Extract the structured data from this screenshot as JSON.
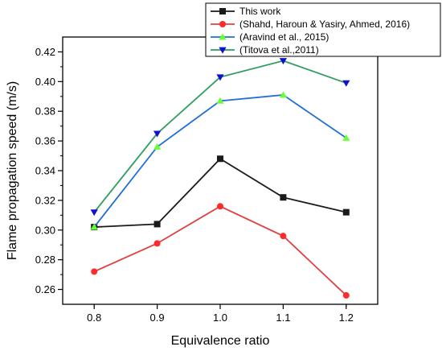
{
  "chart_data": {
    "type": "line",
    "xlabel": "Equivalence ratio",
    "ylabel": "Flame propagation speed (m/s)",
    "xlim": [
      0.75,
      1.25
    ],
    "ylim": [
      0.25,
      0.43
    ],
    "x": [
      0.8,
      0.9,
      1.0,
      1.1,
      1.2
    ],
    "x_ticks": [
      "0.8",
      "0.9",
      "1.0",
      "1.1",
      "1.2"
    ],
    "y_ticks": [
      "0.26",
      "0.28",
      "0.30",
      "0.32",
      "0.34",
      "0.36",
      "0.38",
      "0.40",
      "0.42"
    ],
    "grid": false,
    "legend": "top-right",
    "series": [
      {
        "name": "This work",
        "color": "#1a1a1a",
        "marker": "square",
        "values": [
          0.302,
          0.304,
          0.348,
          0.322,
          0.312
        ]
      },
      {
        "name": "(Shahd, Haroun & Yasiry, Ahmed, 2016)",
        "color": "#ff2a2a",
        "line_color": "#e04040",
        "marker": "circle",
        "values": [
          0.272,
          0.291,
          0.316,
          0.296,
          0.256
        ]
      },
      {
        "name": "(Aravind et al., 2015)",
        "color": "#66ff33",
        "line_color": "#1f6fd6",
        "marker": "triangle-up",
        "values": [
          0.302,
          0.356,
          0.387,
          0.391,
          0.362
        ]
      },
      {
        "name": "(Titova et al.,2011)",
        "color": "#1010d0",
        "line_color": "#2e9e5e",
        "marker": "triangle-down",
        "values": [
          0.312,
          0.365,
          0.403,
          0.414,
          0.399
        ]
      }
    ]
  }
}
